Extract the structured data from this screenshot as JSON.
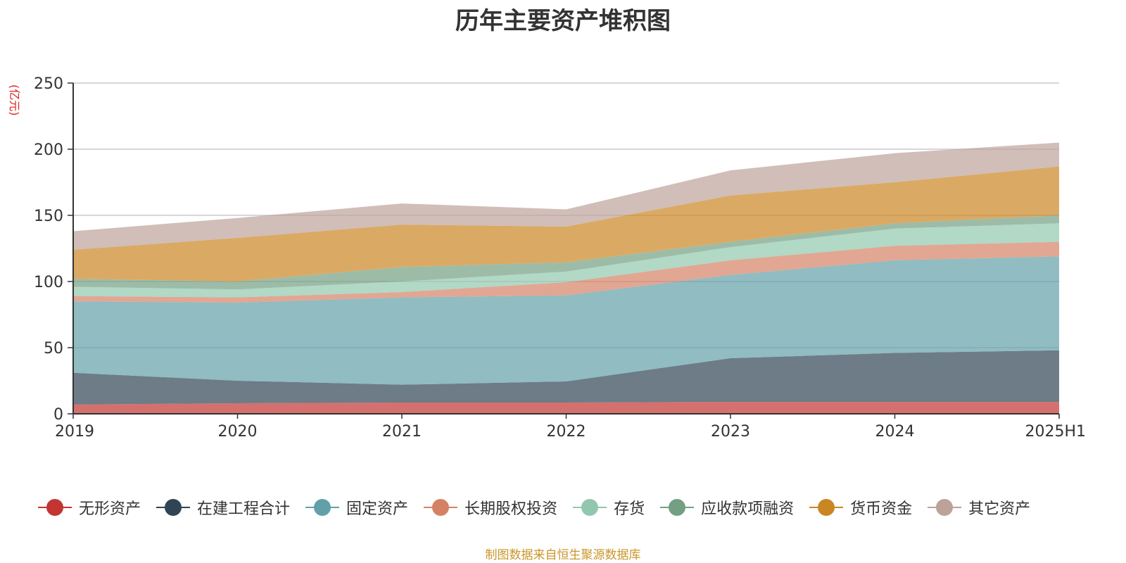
{
  "chart_data": {
    "type": "area",
    "stacked": true,
    "title": "历年主要资产堆积图",
    "unit_label": "(亿元)",
    "categories": [
      "2019",
      "2020",
      "2021",
      "2022",
      "2023",
      "2024",
      "2025H1"
    ],
    "ylim": [
      0,
      250
    ],
    "yticks": [
      0,
      50,
      100,
      150,
      200,
      250
    ],
    "grid": true,
    "legend_position": "bottom",
    "series": [
      {
        "name": "无形资产",
        "color": "#c23531",
        "values": [
          7,
          8,
          8.5,
          8.5,
          9,
          9,
          9
        ]
      },
      {
        "name": "在建工程合计",
        "color": "#2f4554",
        "values": [
          24,
          17,
          13.5,
          16,
          33,
          37,
          39
        ]
      },
      {
        "name": "固定资产",
        "color": "#61a0a8",
        "values": [
          54,
          59,
          66,
          65,
          63,
          70,
          71
        ]
      },
      {
        "name": "长期股权投资",
        "color": "#d48265",
        "values": [
          4,
          4,
          4,
          10,
          11,
          11,
          11
        ]
      },
      {
        "name": "存货",
        "color": "#91c7ae",
        "values": [
          7,
          6,
          8,
          8,
          10,
          13,
          14
        ]
      },
      {
        "name": "应收款项融资",
        "color": "#749f83",
        "values": [
          6,
          6,
          11,
          7,
          4,
          4,
          6
        ]
      },
      {
        "name": "货币资金",
        "color": "#ca8622",
        "values": [
          22,
          33,
          32,
          27,
          35,
          31,
          37
        ]
      },
      {
        "name": "其它资产",
        "color": "#bda29a",
        "values": [
          14,
          15,
          16,
          13,
          19,
          22,
          18
        ]
      }
    ],
    "source_note": "制图数据来自恒生聚源数据库"
  }
}
